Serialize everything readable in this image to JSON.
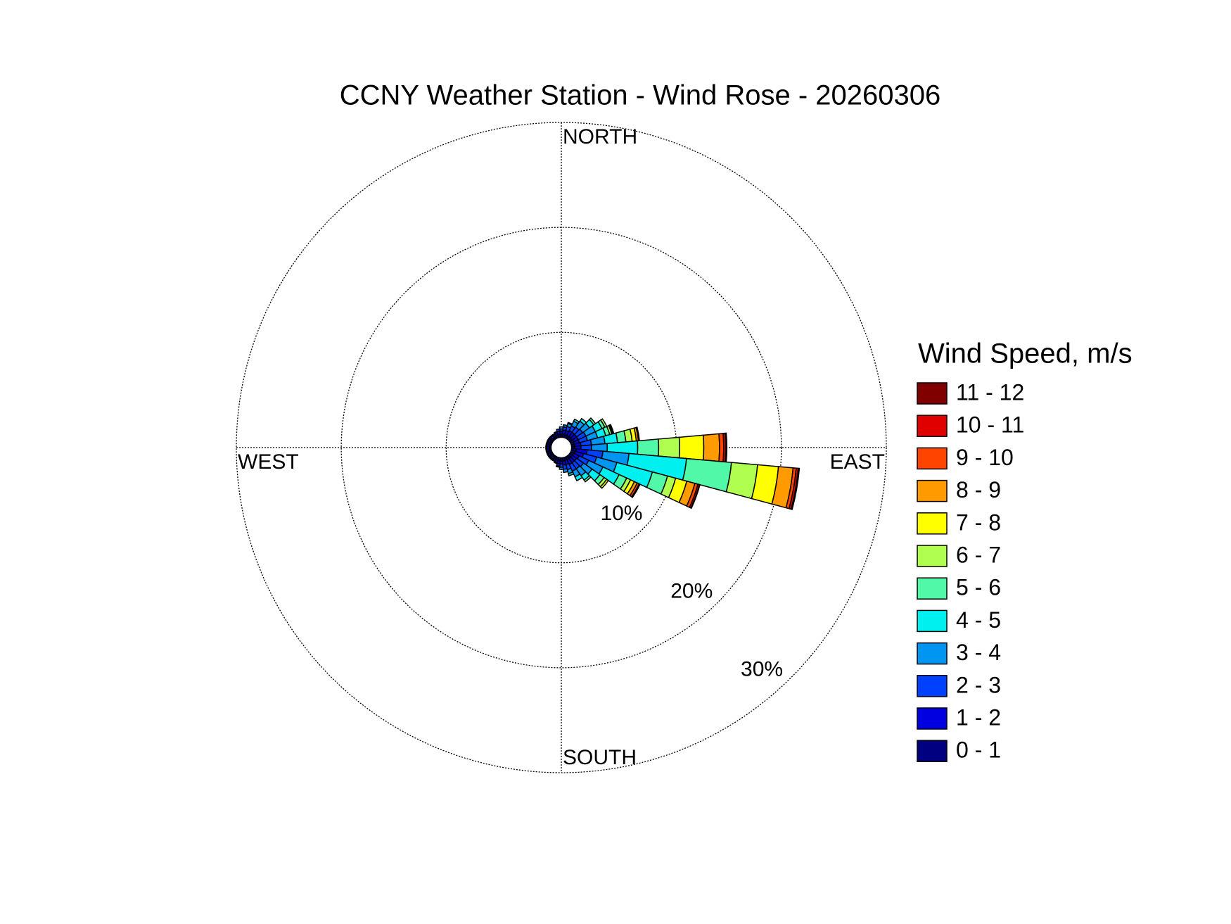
{
  "chart_data": {
    "type": "windrose",
    "title": "CCNY Weather Station - Wind Rose - 20260306",
    "legend_title": "Wind Speed, m/s",
    "direction_labels": [
      "NORTH",
      "EAST",
      "SOUTH",
      "WEST"
    ],
    "directions": [
      0,
      10,
      20,
      30,
      40,
      50,
      60,
      70,
      80,
      90,
      100,
      110,
      120,
      130,
      140,
      150,
      160,
      170,
      180,
      190,
      200,
      210,
      220,
      230,
      240,
      250,
      260,
      270,
      280,
      290,
      300,
      310,
      320,
      330,
      340,
      350
    ],
    "rlim": [
      0,
      30
    ],
    "rticks": [
      {
        "value": 10,
        "label": "10%"
      },
      {
        "value": 20,
        "label": "20%"
      },
      {
        "value": 30,
        "label": "30%"
      }
    ],
    "grid": true,
    "legend": "right",
    "series": [
      {
        "name": "0 - 1",
        "color": "#000080",
        "values": [
          0.3,
          0.3,
          0.3,
          0.3,
          0.3,
          0.3,
          0.3,
          0.3,
          0.3,
          0.3,
          0.5,
          0.4,
          0.3,
          0.3,
          0.3,
          0.3,
          0.3,
          0.3,
          0.3,
          0.3,
          0.3,
          0.2,
          0.2,
          0.2,
          0.2,
          0.2,
          0.2,
          0.2,
          0.2,
          0.2,
          0.2,
          0.2,
          0.2,
          0.2,
          0.3,
          0.3
        ]
      },
      {
        "name": "1 - 2",
        "color": "#0000e0",
        "values": [
          0.3,
          0.4,
          0.4,
          0.5,
          0.5,
          0.5,
          0.5,
          0.5,
          0.6,
          0.6,
          1.0,
          0.8,
          0.6,
          0.5,
          0.5,
          0.5,
          0.4,
          0.4,
          0.3,
          0.3,
          0.2,
          0.2,
          0.2,
          0.2,
          0.2,
          0.2,
          0.2,
          0.2,
          0.2,
          0.2,
          0.2,
          0.2,
          0.2,
          0.2,
          0.2,
          0.3
        ]
      },
      {
        "name": "2 - 3",
        "color": "#0040ff",
        "values": [
          0.2,
          0.3,
          0.4,
          0.5,
          0.6,
          0.7,
          0.8,
          0.8,
          1.0,
          1.0,
          1.5,
          1.3,
          1.0,
          0.8,
          0.7,
          0.7,
          0.5,
          0.4,
          0.3,
          0.2,
          0.1,
          0.1,
          0.1,
          0.1,
          0.1,
          0.1,
          0.1,
          0.1,
          0.1,
          0.1,
          0.1,
          0.1,
          0.1,
          0.1,
          0.1,
          0.2
        ]
      },
      {
        "name": "3 - 4",
        "color": "#0095f0",
        "values": [
          0.2,
          0.2,
          0.3,
          0.5,
          0.7,
          0.8,
          1.0,
          1.0,
          1.3,
          1.5,
          2.5,
          2.0,
          1.5,
          1.0,
          0.8,
          0.6,
          0.4,
          0.3,
          0.2,
          0.1,
          0,
          0,
          0,
          0,
          0,
          0,
          0,
          0,
          0,
          0,
          0,
          0,
          0,
          0,
          0,
          0
        ]
      },
      {
        "name": "4 - 5",
        "color": "#00f0f0",
        "values": [
          0,
          0,
          0.1,
          0.2,
          0.3,
          0.5,
          0.7,
          0.8,
          1.2,
          2.9,
          5.5,
          3.5,
          1.7,
          0.9,
          0.5,
          0.4,
          0.2,
          0,
          0,
          0,
          0,
          0,
          0,
          0,
          0,
          0,
          0,
          0,
          0,
          0,
          0,
          0,
          0,
          0,
          0,
          0
        ]
      },
      {
        "name": "5 - 6",
        "color": "#50f8a8",
        "values": [
          0,
          0,
          0,
          0,
          0,
          0.2,
          0.3,
          0.4,
          0.8,
          2.0,
          4.3,
          1.5,
          0.8,
          0.5,
          0.2,
          0,
          0,
          0,
          0,
          0,
          0,
          0,
          0,
          0,
          0,
          0,
          0,
          0,
          0,
          0,
          0,
          0,
          0,
          0,
          0,
          0
        ]
      },
      {
        "name": "6 - 7",
        "color": "#b0ff50",
        "values": [
          0,
          0,
          0,
          0,
          0,
          0,
          0.2,
          0.2,
          0.6,
          2.0,
          2.5,
          0.8,
          0.4,
          0.3,
          0,
          0,
          0,
          0,
          0,
          0,
          0,
          0,
          0,
          0,
          0,
          0,
          0,
          0,
          0,
          0,
          0,
          0,
          0,
          0,
          0,
          0
        ]
      },
      {
        "name": "7 - 8",
        "color": "#ffff00",
        "values": [
          0,
          0,
          0,
          0,
          0,
          0,
          0,
          0.1,
          0.4,
          2.3,
          2.0,
          1.1,
          0.4,
          0.2,
          0,
          0,
          0,
          0,
          0,
          0,
          0,
          0,
          0,
          0,
          0,
          0,
          0,
          0,
          0,
          0,
          0,
          0,
          0,
          0,
          0,
          0
        ]
      },
      {
        "name": "8 - 9",
        "color": "#ff9a00",
        "values": [
          0,
          0,
          0,
          0,
          0,
          0,
          0,
          0.1,
          0.2,
          1.5,
          1.4,
          0.8,
          0.3,
          0,
          0,
          0,
          0,
          0,
          0,
          0,
          0,
          0,
          0,
          0,
          0,
          0,
          0,
          0,
          0,
          0,
          0,
          0,
          0,
          0,
          0,
          0
        ]
      },
      {
        "name": "9 - 10",
        "color": "#ff4400",
        "values": [
          0,
          0,
          0,
          0,
          0,
          0,
          0,
          0,
          0.1,
          0.4,
          0.3,
          0.3,
          0.2,
          0,
          0,
          0,
          0,
          0,
          0,
          0,
          0,
          0,
          0,
          0,
          0,
          0,
          0,
          0,
          0,
          0,
          0,
          0,
          0,
          0,
          0,
          0
        ]
      },
      {
        "name": "10 - 11",
        "color": "#e00000",
        "values": [
          0,
          0,
          0,
          0,
          0,
          0,
          0,
          0,
          0,
          0.2,
          0.2,
          0.15,
          0.1,
          0,
          0,
          0,
          0,
          0,
          0,
          0,
          0,
          0,
          0,
          0,
          0,
          0,
          0,
          0,
          0,
          0,
          0,
          0,
          0,
          0,
          0,
          0
        ]
      },
      {
        "name": "11 - 12",
        "color": "#800000",
        "values": [
          0,
          0,
          0,
          0,
          0,
          0,
          0,
          0,
          0,
          0.1,
          0.1,
          0.05,
          0,
          0,
          0,
          0,
          0,
          0,
          0,
          0,
          0,
          0,
          0,
          0,
          0,
          0,
          0,
          0,
          0,
          0,
          0,
          0,
          0,
          0,
          0,
          0
        ]
      }
    ]
  }
}
